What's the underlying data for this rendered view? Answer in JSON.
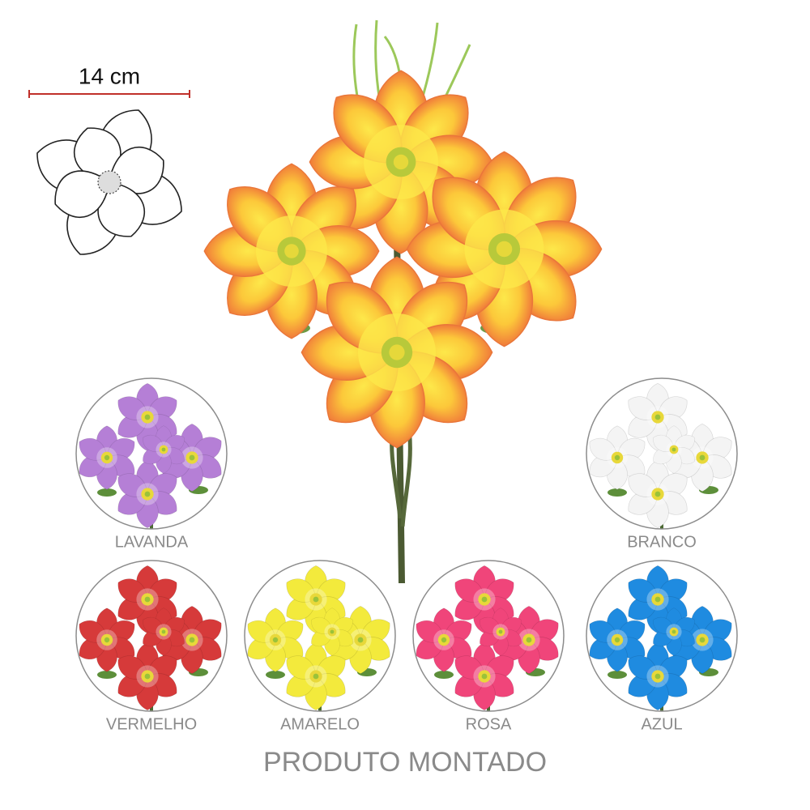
{
  "dimension": {
    "label": "14 cm"
  },
  "variants": [
    {
      "label": "LAVANDA",
      "color": "#b57fd6"
    },
    {
      "label": "BRANCO",
      "color": "#f4f4f4"
    },
    {
      "label": "VERMELHO",
      "color": "#d63a3a"
    },
    {
      "label": "AMARELO",
      "color": "#f3ea3c"
    },
    {
      "label": "ROSA",
      "color": "#f0457a"
    },
    {
      "label": "AZUL",
      "color": "#1f8be0"
    }
  ],
  "footer": "PRODUTO MONTADO"
}
